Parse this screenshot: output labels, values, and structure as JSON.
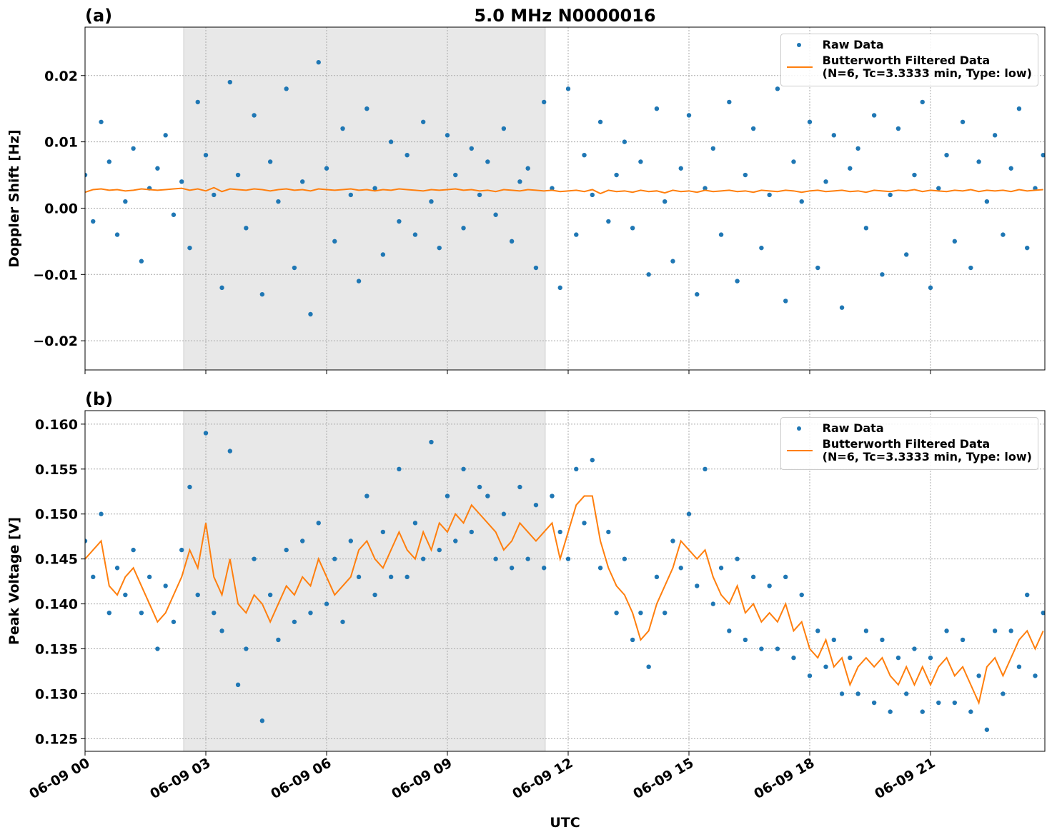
{
  "chart_data": [
    {
      "type": "scatter",
      "title": "5.0 MHz N0000016",
      "panel_label": "(a)",
      "ylabel": "Doppler Shift [Hz]",
      "xlim": [
        0,
        23.84
      ],
      "xticks": [
        0,
        3,
        6,
        9,
        12,
        15,
        18,
        21
      ],
      "xticklabels": false,
      "ylim": [
        -0.0244,
        0.0273
      ],
      "yticks": [
        {
          "value": -0.02,
          "label": "−0.02"
        },
        {
          "value": -0.01,
          "label": "−0.01"
        },
        {
          "value": 0,
          "label": "0.00"
        },
        {
          "value": 0.01,
          "label": "0.01"
        },
        {
          "value": 0.02,
          "label": "0.02"
        }
      ],
      "grid": true,
      "shade": [
        2.45,
        11.43
      ],
      "legend": "upper right",
      "x": [
        0,
        0.2,
        0.4,
        0.6,
        0.8,
        1,
        1.2,
        1.4,
        1.6,
        1.8,
        2,
        2.2,
        2.4,
        2.6,
        2.8,
        3,
        3.2,
        3.4,
        3.6,
        3.8,
        4,
        4.2,
        4.4,
        4.6,
        4.8,
        5,
        5.2,
        5.4,
        5.6,
        5.8,
        6,
        6.2,
        6.4,
        6.6,
        6.8,
        7,
        7.2,
        7.4,
        7.6,
        7.8,
        8,
        8.2,
        8.4,
        8.6,
        8.8,
        9,
        9.2,
        9.4,
        9.6,
        9.8,
        10,
        10.2,
        10.4,
        10.6,
        10.8,
        11,
        11.2,
        11.4,
        11.6,
        11.8,
        12,
        12.2,
        12.4,
        12.6,
        12.8,
        13,
        13.2,
        13.4,
        13.6,
        13.8,
        14,
        14.2,
        14.4,
        14.6,
        14.8,
        15,
        15.2,
        15.4,
        15.6,
        15.8,
        16,
        16.2,
        16.4,
        16.6,
        16.8,
        17,
        17.2,
        17.4,
        17.6,
        17.8,
        18,
        18.2,
        18.4,
        18.6,
        18.8,
        19,
        19.2,
        19.4,
        19.6,
        19.8,
        20,
        20.2,
        20.4,
        20.6,
        20.8,
        21,
        21.2,
        21.4,
        21.6,
        21.8,
        22,
        22.2,
        22.4,
        22.6,
        22.8,
        23,
        23.2,
        23.4,
        23.6,
        23.8
      ],
      "series": [
        {
          "name": "Raw Data",
          "color": "#1f77b4",
          "marker": "dot",
          "values": [
            0.005,
            -0.002,
            0.013,
            0.007,
            -0.004,
            0.001,
            0.009,
            -0.008,
            0.003,
            0.006,
            0.011,
            -0.001,
            0.004,
            -0.006,
            0.016,
            0.008,
            0.002,
            -0.012,
            0.019,
            0.005,
            -0.003,
            0.014,
            -0.013,
            0.007,
            0.001,
            0.018,
            -0.009,
            0.004,
            -0.016,
            0.022,
            0.006,
            -0.005,
            0.012,
            0.002,
            -0.011,
            0.015,
            0.003,
            -0.007,
            0.01,
            -0.002,
            0.008,
            -0.004,
            0.013,
            0.001,
            -0.006,
            0.011,
            0.005,
            -0.003,
            0.009,
            0.002,
            0.007,
            -0.001,
            0.012,
            -0.005,
            0.004,
            0.006,
            -0.009,
            0.016,
            0.003,
            -0.012,
            0.018,
            -0.004,
            0.008,
            0.002,
            0.013,
            -0.002,
            0.005,
            0.01,
            -0.003,
            0.007,
            -0.01,
            0.015,
            0.001,
            -0.008,
            0.006,
            0.014,
            -0.013,
            0.003,
            0.009,
            -0.004,
            0.016,
            -0.011,
            0.005,
            0.012,
            -0.006,
            0.002,
            0.018,
            -0.014,
            0.007,
            0.001,
            0.013,
            -0.009,
            0.004,
            0.011,
            -0.015,
            0.006,
            0.009,
            -0.003,
            0.014,
            -0.01,
            0.002,
            0.012,
            -0.007,
            0.005,
            0.016,
            -0.012,
            0.003,
            0.008,
            -0.005,
            0.013,
            -0.009,
            0.007,
            0.001,
            0.011,
            -0.004,
            0.006,
            0.015,
            -0.006,
            0.003,
            0.008
          ]
        },
        {
          "name": "Butterworth Filtered Data\n(N=6, Tc=3.3333 min, Type: low)",
          "color": "#ff7f0e",
          "marker": "line",
          "values": [
            0.0024,
            0.0028,
            0.0029,
            0.0027,
            0.0028,
            0.0026,
            0.0027,
            0.0029,
            0.0028,
            0.0027,
            0.0028,
            0.0029,
            0.003,
            0.0027,
            0.0029,
            0.0026,
            0.0031,
            0.0025,
            0.0029,
            0.0028,
            0.0027,
            0.0029,
            0.0028,
            0.0026,
            0.0028,
            0.0029,
            0.0027,
            0.0028,
            0.0026,
            0.0029,
            0.0028,
            0.0027,
            0.0028,
            0.0029,
            0.0027,
            0.0028,
            0.0026,
            0.0028,
            0.0027,
            0.0029,
            0.0028,
            0.0027,
            0.0026,
            0.0028,
            0.0027,
            0.0028,
            0.0029,
            0.0027,
            0.0028,
            0.0026,
            0.0027,
            0.0025,
            0.0028,
            0.0027,
            0.0026,
            0.0028,
            0.0027,
            0.0026,
            0.0027,
            0.0025,
            0.0026,
            0.0027,
            0.0025,
            0.0028,
            0.0022,
            0.0027,
            0.0025,
            0.0026,
            0.0024,
            0.0027,
            0.0025,
            0.0026,
            0.0023,
            0.0027,
            0.0025,
            0.0026,
            0.0024,
            0.0027,
            0.0025,
            0.0026,
            0.0027,
            0.0025,
            0.0026,
            0.0024,
            0.0027,
            0.0026,
            0.0025,
            0.0027,
            0.0026,
            0.0024,
            0.0026,
            0.0027,
            0.0025,
            0.0026,
            0.0027,
            0.0025,
            0.0026,
            0.0024,
            0.0027,
            0.0026,
            0.0025,
            0.0027,
            0.0026,
            0.0028,
            0.0025,
            0.0027,
            0.0026,
            0.0025,
            0.0027,
            0.0026,
            0.0028,
            0.0025,
            0.0027,
            0.0026,
            0.0027,
            0.0025,
            0.0028,
            0.0026,
            0.0027,
            0.0028
          ]
        }
      ]
    },
    {
      "type": "scatter",
      "panel_label": "(b)",
      "ylabel": "Peak Voltage [V]",
      "xlabel": "UTC",
      "xlim": [
        0,
        23.84
      ],
      "xticks": [
        {
          "value": 0,
          "label": "06-09 00"
        },
        {
          "value": 3,
          "label": "06-09 03"
        },
        {
          "value": 6,
          "label": "06-09 06"
        },
        {
          "value": 9,
          "label": "06-09 09"
        },
        {
          "value": 12,
          "label": "06-09 12"
        },
        {
          "value": 15,
          "label": "06-09 15"
        },
        {
          "value": 18,
          "label": "06-09 18"
        },
        {
          "value": 21,
          "label": "06-09 21"
        }
      ],
      "xticklabels": true,
      "ylim": [
        0.1236,
        0.1615
      ],
      "yticks": [
        0.125,
        {
          "value": 0.13,
          "label": "0.130"
        },
        0.135,
        {
          "value": 0.14,
          "label": "0.140"
        },
        0.145,
        {
          "value": 0.15,
          "label": "0.150"
        },
        0.155,
        {
          "value": 0.16,
          "label": "0.160"
        }
      ],
      "grid": true,
      "shade": [
        2.45,
        11.43
      ],
      "legend": "upper right",
      "x": [
        0,
        0.2,
        0.4,
        0.6,
        0.8,
        1,
        1.2,
        1.4,
        1.6,
        1.8,
        2,
        2.2,
        2.4,
        2.6,
        2.8,
        3,
        3.2,
        3.4,
        3.6,
        3.8,
        4,
        4.2,
        4.4,
        4.6,
        4.8,
        5,
        5.2,
        5.4,
        5.6,
        5.8,
        6,
        6.2,
        6.4,
        6.6,
        6.8,
        7,
        7.2,
        7.4,
        7.6,
        7.8,
        8,
        8.2,
        8.4,
        8.6,
        8.8,
        9,
        9.2,
        9.4,
        9.6,
        9.8,
        10,
        10.2,
        10.4,
        10.6,
        10.8,
        11,
        11.2,
        11.4,
        11.6,
        11.8,
        12,
        12.2,
        12.4,
        12.6,
        12.8,
        13,
        13.2,
        13.4,
        13.6,
        13.8,
        14,
        14.2,
        14.4,
        14.6,
        14.8,
        15,
        15.2,
        15.4,
        15.6,
        15.8,
        16,
        16.2,
        16.4,
        16.6,
        16.8,
        17,
        17.2,
        17.4,
        17.6,
        17.8,
        18,
        18.2,
        18.4,
        18.6,
        18.8,
        19,
        19.2,
        19.4,
        19.6,
        19.8,
        20,
        20.2,
        20.4,
        20.6,
        20.8,
        21,
        21.2,
        21.4,
        21.6,
        21.8,
        22,
        22.2,
        22.4,
        22.6,
        22.8,
        23,
        23.2,
        23.4,
        23.6,
        23.8
      ],
      "series": [
        {
          "name": "Raw Data",
          "color": "#1f77b4",
          "marker": "dot",
          "values": [
            0.147,
            0.143,
            0.15,
            0.139,
            0.144,
            0.141,
            0.146,
            0.139,
            0.143,
            0.135,
            0.142,
            0.138,
            0.146,
            0.153,
            0.141,
            0.159,
            0.139,
            0.137,
            0.157,
            0.131,
            0.135,
            0.145,
            0.127,
            0.141,
            0.136,
            0.146,
            0.138,
            0.147,
            0.139,
            0.149,
            0.14,
            0.145,
            0.138,
            0.147,
            0.143,
            0.152,
            0.141,
            0.148,
            0.143,
            0.155,
            0.143,
            0.149,
            0.145,
            0.158,
            0.146,
            0.152,
            0.147,
            0.155,
            0.148,
            0.153,
            0.152,
            0.145,
            0.15,
            0.144,
            0.153,
            0.145,
            0.151,
            0.144,
            0.152,
            0.148,
            0.145,
            0.155,
            0.149,
            0.156,
            0.144,
            0.148,
            0.139,
            0.145,
            0.136,
            0.139,
            0.133,
            0.143,
            0.139,
            0.147,
            0.144,
            0.15,
            0.142,
            0.155,
            0.14,
            0.144,
            0.137,
            0.145,
            0.136,
            0.143,
            0.135,
            0.142,
            0.135,
            0.143,
            0.134,
            0.141,
            0.132,
            0.137,
            0.133,
            0.136,
            0.13,
            0.134,
            0.13,
            0.137,
            0.129,
            0.136,
            0.128,
            0.134,
            0.13,
            0.135,
            0.128,
            0.134,
            0.129,
            0.137,
            0.129,
            0.136,
            0.128,
            0.132,
            0.126,
            0.137,
            0.13,
            0.137,
            0.133,
            0.141,
            0.132,
            0.139
          ]
        },
        {
          "name": "Butterworth Filtered Data\n(N=6, Tc=3.3333 min, Type: low)",
          "color": "#ff7f0e",
          "marker": "line",
          "values": [
            0.145,
            0.146,
            0.147,
            0.142,
            0.141,
            0.143,
            0.144,
            0.142,
            0.14,
            0.138,
            0.139,
            0.141,
            0.143,
            0.146,
            0.144,
            0.149,
            0.143,
            0.141,
            0.145,
            0.14,
            0.139,
            0.141,
            0.14,
            0.138,
            0.14,
            0.142,
            0.141,
            0.143,
            0.142,
            0.145,
            0.143,
            0.141,
            0.142,
            0.143,
            0.146,
            0.147,
            0.145,
            0.144,
            0.146,
            0.148,
            0.146,
            0.145,
            0.148,
            0.146,
            0.149,
            0.148,
            0.15,
            0.149,
            0.151,
            0.15,
            0.149,
            0.148,
            0.146,
            0.147,
            0.149,
            0.148,
            0.147,
            0.148,
            0.149,
            0.145,
            0.148,
            0.151,
            0.152,
            0.152,
            0.147,
            0.144,
            0.142,
            0.141,
            0.139,
            0.136,
            0.137,
            0.14,
            0.142,
            0.144,
            0.147,
            0.146,
            0.145,
            0.146,
            0.143,
            0.141,
            0.14,
            0.142,
            0.139,
            0.14,
            0.138,
            0.139,
            0.138,
            0.14,
            0.137,
            0.138,
            0.135,
            0.134,
            0.136,
            0.133,
            0.134,
            0.131,
            0.133,
            0.134,
            0.133,
            0.134,
            0.132,
            0.131,
            0.133,
            0.131,
            0.133,
            0.131,
            0.133,
            0.134,
            0.132,
            0.133,
            0.131,
            0.129,
            0.133,
            0.134,
            0.132,
            0.134,
            0.136,
            0.137,
            0.135,
            0.137
          ]
        }
      ]
    }
  ]
}
